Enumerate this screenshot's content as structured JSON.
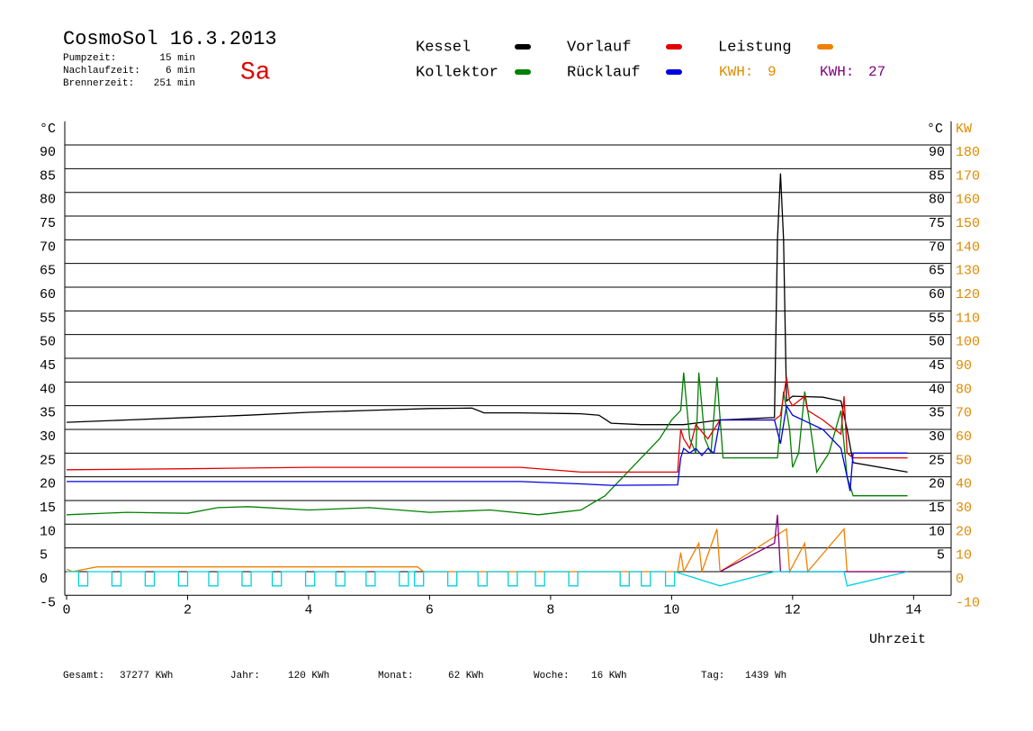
{
  "chart_data": {
    "type": "line",
    "title": "CosmoSol 16.3.2013",
    "day": "Sa",
    "info": [
      {
        "label": "Pumpzeit:",
        "value": "15 min"
      },
      {
        "label": "Nachlaufzeit:",
        "value": "6 min"
      },
      {
        "label": "Brennerzeit:",
        "value": "251 min"
      }
    ],
    "kwh": [
      {
        "label": "KWH:",
        "value": 9,
        "color": "#e08a00"
      },
      {
        "label": "KWH:",
        "value": 27,
        "color": "#800080"
      }
    ],
    "y_label": "°C",
    "y2_label": "KW",
    "y_right_label": "°C",
    "x_label": "Uhrzeit",
    "xlim": [
      0,
      14.62
    ],
    "xticks": [
      0,
      2,
      4,
      6,
      8,
      10,
      12,
      14
    ],
    "ylim": [
      -5,
      95
    ],
    "yticks": [
      -5,
      0,
      5,
      10,
      15,
      20,
      25,
      30,
      35,
      40,
      45,
      50,
      55,
      60,
      65,
      70,
      75,
      80,
      85,
      90
    ],
    "y_right_ticks": [
      5,
      10,
      15,
      20,
      25,
      30,
      35,
      40,
      45,
      50,
      55,
      60,
      65,
      70,
      75,
      80,
      85,
      90
    ],
    "y2lim": [
      -10,
      190
    ],
    "y2ticks": [
      -10,
      0,
      10,
      20,
      30,
      40,
      50,
      60,
      70,
      80,
      90,
      100,
      110,
      120,
      130,
      140,
      150,
      160,
      170,
      180
    ],
    "grid": true,
    "series": [
      {
        "name": "Kessel",
        "color": "#000000",
        "x": [
          0,
          1,
          2,
          3,
          4,
          5,
          6,
          6.7,
          6.9,
          7.5,
          8.5,
          8.8,
          9,
          9.5,
          10.2,
          10.5,
          10.8,
          11.7,
          11.75,
          11.8,
          11.85,
          11.9,
          12,
          12.5,
          12.8,
          12.9,
          13,
          13.9
        ],
        "values": [
          31.5,
          32,
          32.5,
          33,
          33.6,
          34,
          34.4,
          34.5,
          33.5,
          33.5,
          33.3,
          33,
          31.3,
          31,
          31,
          31.5,
          32,
          32.5,
          70,
          84,
          70,
          36,
          37,
          36.8,
          36,
          30,
          23,
          21
        ]
      },
      {
        "name": "Kollektor",
        "color": "#008000",
        "x": [
          0,
          1,
          2,
          2.5,
          3,
          4,
          5,
          6,
          7,
          7.8,
          8.5,
          8.9,
          9.2,
          9.5,
          9.8,
          10,
          10.15,
          10.2,
          10.3,
          10.4,
          10.45,
          10.55,
          10.65,
          10.75,
          10.85,
          11.75,
          11.85,
          11.95,
          12,
          12.1,
          12.2,
          12.3,
          12.4,
          12.6,
          12.8,
          12.85,
          12.9,
          13,
          13.9
        ],
        "values": [
          12,
          12.5,
          12.3,
          13.5,
          13.7,
          13,
          13.5,
          12.5,
          13,
          12,
          13,
          16,
          20,
          24,
          28,
          32,
          34,
          42,
          28,
          25,
          42,
          28,
          25,
          41,
          24,
          24,
          38,
          30,
          22,
          25,
          38,
          30,
          21,
          25,
          34,
          27,
          20,
          16,
          16
        ]
      },
      {
        "name": "Vorlauf",
        "color": "#e00000",
        "x": [
          0,
          2,
          4,
          6,
          7.5,
          8.5,
          10.1,
          10.15,
          10.2,
          10.3,
          10.4,
          10.6,
          10.8,
          11.7,
          11.8,
          11.9,
          11.95,
          12,
          12.2,
          12.25,
          12.5,
          12.8,
          12.85,
          12.9,
          13,
          13.9
        ],
        "values": [
          21.5,
          21.7,
          22,
          22,
          22,
          21,
          21,
          30,
          28,
          26,
          31,
          28,
          32,
          32,
          33,
          41,
          36,
          35,
          37,
          34,
          32,
          29,
          37,
          25,
          24,
          24
        ]
      },
      {
        "name": "Rücklauf",
        "color": "#0000e0",
        "x": [
          0,
          4,
          7.5,
          8.5,
          9,
          10.1,
          10.15,
          10.2,
          10.3,
          10.4,
          10.5,
          10.6,
          10.7,
          10.8,
          11.7,
          11.8,
          11.9,
          12,
          12.5,
          12.8,
          12.9,
          12.95,
          13,
          13.9
        ],
        "values": [
          19,
          19,
          19,
          18.5,
          18.2,
          18.3,
          24,
          26,
          25,
          26,
          24.5,
          26,
          25,
          32,
          32,
          27,
          35,
          33,
          30,
          26,
          20,
          17,
          25,
          25
        ]
      },
      {
        "name": "Leistung",
        "color": "#f08000",
        "axis": "y2",
        "x": [
          0,
          0.1,
          0.5,
          5.8,
          5.9,
          10.1,
          10.15,
          10.2,
          10.45,
          10.5,
          10.75,
          10.8,
          11.9,
          11.95,
          12.2,
          12.25,
          12.85,
          12.9,
          13.9
        ],
        "values": [
          1,
          0,
          2,
          2,
          0,
          0,
          8,
          0,
          12,
          0,
          18,
          0,
          18,
          0,
          12,
          0,
          18,
          0,
          0
        ]
      },
      {
        "color": "#800080",
        "axis": "y2",
        "x": [
          10.8,
          11.7,
          11.75,
          11.8,
          13.9
        ],
        "values": [
          0,
          12,
          24,
          0,
          0
        ]
      },
      {
        "color": "#00d0e0",
        "x": [
          0,
          0.2,
          0.2,
          0.35,
          0.35,
          0.75,
          0.75,
          0.9,
          0.9,
          1.3,
          1.3,
          1.45,
          1.45,
          1.85,
          1.85,
          2,
          2,
          2.35,
          2.35,
          2.5,
          2.5,
          2.9,
          2.9,
          3.05,
          3.05,
          3.4,
          3.4,
          3.55,
          3.55,
          3.95,
          3.95,
          4.1,
          4.1,
          4.45,
          4.45,
          4.6,
          4.6,
          4.95,
          4.95,
          5.1,
          5.1,
          5.5,
          5.5,
          5.65,
          5.65,
          5.75,
          5.75,
          5.9,
          5.9,
          6.3,
          6.3,
          6.45,
          6.45,
          6.8,
          6.8,
          6.95,
          6.95,
          7.3,
          7.3,
          7.45,
          7.45,
          7.75,
          7.75,
          7.9,
          7.9,
          8.3,
          8.3,
          8.45,
          8.45,
          9.15,
          9.15,
          9.3,
          9.3,
          9.5,
          9.5,
          9.65,
          9.65,
          9.9,
          9.9,
          10.05,
          10.05,
          10.8,
          11.7,
          12.85,
          12.9,
          13.9
        ],
        "values": [
          0,
          0,
          -3,
          -3,
          0,
          0,
          -3,
          -3,
          0,
          0,
          -3,
          -3,
          0,
          0,
          -3,
          -3,
          0,
          0,
          -3,
          -3,
          0,
          0,
          -3,
          -3,
          0,
          0,
          -3,
          -3,
          0,
          0,
          -3,
          -3,
          0,
          0,
          -3,
          -3,
          0,
          0,
          -3,
          -3,
          0,
          0,
          -3,
          -3,
          0,
          0,
          -3,
          -3,
          0,
          0,
          -3,
          -3,
          0,
          0,
          -3,
          -3,
          0,
          0,
          -3,
          -3,
          0,
          0,
          -3,
          -3,
          0,
          0,
          -3,
          -3,
          0,
          0,
          -3,
          -3,
          0,
          0,
          -3,
          -3,
          0,
          0,
          -3,
          -3,
          0,
          -3,
          0,
          0,
          -3,
          0
        ]
      }
    ],
    "totals": [
      {
        "label": "Gesamt:",
        "value": "37277 KWh"
      },
      {
        "label": "Jahr:",
        "value": "120 KWh"
      },
      {
        "label": "Monat:",
        "value": "62 KWh"
      },
      {
        "label": "Woche:",
        "value": "16 KWh"
      },
      {
        "label": "Tag:",
        "value": "1439 Wh"
      }
    ]
  }
}
